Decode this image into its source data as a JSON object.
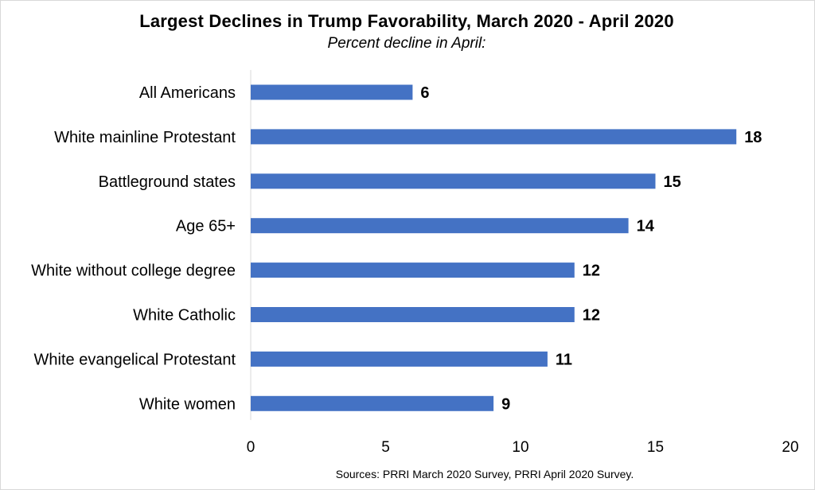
{
  "chart_data": {
    "type": "bar",
    "orientation": "horizontal",
    "title": "Largest Declines in Trump Favorability, March 2020 - April 2020",
    "subtitle": "Percent decline in April:",
    "categories": [
      "All Americans",
      "White mainline Protestant",
      "Battleground states",
      "Age 65+",
      "White without college degree",
      "White Catholic",
      "White evangelical Protestant",
      "White women"
    ],
    "values": [
      6,
      18,
      15,
      14,
      12,
      12,
      11,
      9
    ],
    "xlim": [
      0,
      20
    ],
    "xticks": [
      0,
      5,
      10,
      15,
      20
    ],
    "grid": false,
    "bar_color": "#4472C4",
    "source": "Sources: PRRI March 2020 Survey, PRRI April 2020 Survey."
  }
}
